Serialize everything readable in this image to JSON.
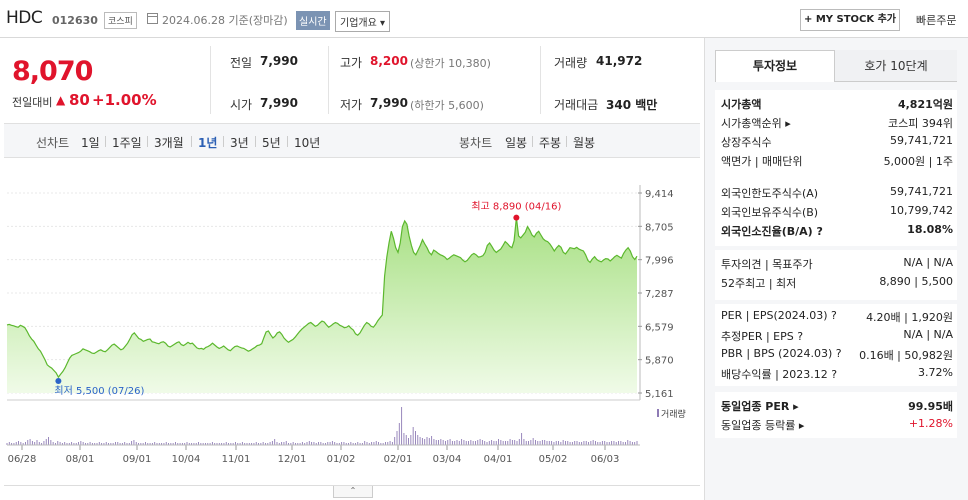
{
  "header": {
    "name": "HDC",
    "code": "012630",
    "market": "코스피",
    "date": "2024.06.28 기준(장마감)",
    "realtime": "실시간",
    "overview": "기업개요 ▾",
    "mystock": "+ MY STOCK 추가",
    "quick_order": "빠른주문"
  },
  "price": {
    "current": "8,070",
    "change_label": "전일대비",
    "change_arrow": "▲",
    "change_value": "80",
    "change_pct": "+1.00%",
    "prev_close_label": "전일",
    "prev_close": "7,990",
    "high_label": "고가",
    "high": "8,200",
    "upper_limit": "(상한가 10,380)",
    "volume_label": "거래량",
    "volume": "41,972",
    "open_label": "시가",
    "open": "7,990",
    "low_label": "저가",
    "low": "7,990",
    "lower_limit": "(하한가 5,600)",
    "amount_label": "거래대금",
    "amount": "340 백만"
  },
  "period_tabs": {
    "line_label": "선차트",
    "line": [
      "1일",
      "1주일",
      "3개월",
      "1년",
      "3년",
      "5년",
      "10년"
    ],
    "active": "1년",
    "candle_label": "봉차트",
    "candle": [
      "일봉",
      "주봉",
      "월봉"
    ]
  },
  "chart_data": {
    "type": "area",
    "title": "",
    "xlabel": "",
    "ylabel": "",
    "ylim": [
      5161,
      9414
    ],
    "y_ticks": [
      "9,414",
      "8,705",
      "7,996",
      "7,287",
      "6,579",
      "5,870",
      "5,161"
    ],
    "x_ticks": [
      "06/28",
      "08/01",
      "09/01",
      "10/04",
      "11/01",
      "12/01",
      "01/02",
      "02/01",
      "03/04",
      "04/01",
      "05/02",
      "06/03"
    ],
    "high_label": "최고 8,890 (04/16)",
    "low_label": "최저 5,500 (07/26)",
    "volume_legend": "거래량",
    "line_color": "#5cb82e",
    "fill_color": "#c6ecb0",
    "series": [
      {
        "values": [
          6610,
          6620,
          6600,
          6590,
          6570,
          6560,
          6600,
          6580,
          6550,
          6470,
          6380,
          6310,
          6260,
          6180,
          6100,
          6050,
          5960,
          5870,
          5760,
          5720,
          5690,
          5640,
          5590,
          5500,
          5560,
          5620,
          5700,
          5800,
          5900,
          5960,
          5980,
          6000,
          6020,
          6050,
          6100,
          6080,
          6060,
          6040,
          6010,
          6000,
          6030,
          6060,
          6080,
          6050,
          6040,
          6080,
          6130,
          6180,
          6200,
          6160,
          6120,
          6080,
          6100,
          6160,
          6220,
          6310,
          6400,
          6440,
          6380,
          6320,
          6300,
          6260,
          6280,
          6300,
          6310,
          6250,
          6240,
          6220,
          6210,
          6240,
          6250,
          6220,
          6160,
          6140,
          6170,
          6200,
          6230,
          6250,
          6190,
          6170,
          6200,
          6240,
          6210,
          6220,
          6170,
          6120,
          6100,
          6110,
          6090,
          6130,
          6150,
          6180,
          6220,
          6180,
          6140,
          6110,
          6130,
          6160,
          6120,
          6080,
          6060,
          6110,
          6150,
          6160,
          6140,
          6120,
          6110,
          6080,
          6050,
          6070,
          6100,
          6130,
          6170,
          6180,
          6210,
          6340,
          6460,
          6480,
          6400,
          6330,
          6370,
          6440,
          6460,
          6410,
          6330,
          6280,
          6240,
          6270,
          6300,
          6350,
          6410,
          6470,
          6520,
          6560,
          6600,
          6640,
          6660,
          6620,
          6580,
          6600,
          6650,
          6690,
          6670,
          6610,
          6560,
          6590,
          6630,
          6660,
          6640,
          6600,
          6580,
          6550,
          6560,
          6590,
          6540,
          6500,
          6420,
          6390,
          6440,
          6520,
          6600,
          6660,
          6630,
          6580,
          6560,
          6620,
          6700,
          6760,
          6820,
          7650,
          8050,
          8350,
          8600,
          8450,
          8250,
          8150,
          8350,
          8700,
          8820,
          8750,
          8500,
          8300,
          8150,
          8100,
          8200,
          8300,
          8420,
          8330,
          8250,
          8150,
          8100,
          8200,
          8170,
          8130,
          8100,
          8080,
          8050,
          8000,
          8030,
          8070,
          8100,
          8080,
          8060,
          8040,
          7990,
          7950,
          7980,
          8040,
          8100,
          8130,
          8100,
          8050,
          8060,
          8080,
          8150,
          8300,
          8350,
          8280,
          8200,
          8150,
          8190,
          8220,
          8300,
          8380,
          8340,
          8280,
          8250,
          8400,
          8890,
          8500,
          8460,
          8520,
          8580,
          8700,
          8620,
          8520,
          8480,
          8560,
          8600,
          8520,
          8440,
          8400,
          8380,
          8330,
          8260,
          8180,
          8250,
          8300,
          8260,
          8150,
          8120,
          8180,
          8250,
          8240,
          8230,
          8260,
          8220,
          8200,
          8180,
          8100,
          7980,
          7940,
          8010,
          8060,
          8000,
          7970,
          7950,
          7990,
          8020,
          8010,
          7970,
          8010,
          8060,
          8090,
          8060,
          8030,
          8130,
          8200,
          8250,
          8180,
          8060,
          8000,
          8070
        ]
      }
    ],
    "volume": [
      2,
      3,
      2,
      2,
      3,
      4,
      3,
      2,
      3,
      5,
      6,
      4,
      3,
      5,
      3,
      2,
      4,
      6,
      8,
      5,
      3,
      2,
      4,
      3,
      2,
      3,
      2,
      2,
      3,
      2,
      2,
      3,
      4,
      3,
      2,
      2,
      3,
      2,
      2,
      2,
      3,
      2,
      2,
      3,
      2,
      2,
      2,
      3,
      3,
      2,
      2,
      3,
      2,
      2,
      4,
      5,
      3,
      2,
      2,
      2,
      3,
      2,
      2,
      2,
      3,
      2,
      2,
      2,
      2,
      3,
      2,
      2,
      2,
      3,
      2,
      2,
      2,
      2,
      3,
      2,
      2,
      2,
      2,
      3,
      2,
      2,
      2,
      2,
      2,
      3,
      2,
      2,
      2,
      2,
      2,
      3,
      2,
      2,
      2,
      3,
      2,
      2,
      3,
      2,
      2,
      2,
      2,
      2,
      3,
      2,
      2,
      3,
      2,
      2,
      3,
      4,
      6,
      3,
      2,
      3,
      3,
      4,
      2,
      2,
      3,
      2,
      2,
      2,
      3,
      2,
      3,
      4,
      3,
      3,
      2,
      3,
      3,
      2,
      2,
      3,
      3,
      4,
      3,
      2,
      2,
      3,
      3,
      2,
      2,
      3,
      2,
      2,
      3,
      2,
      2,
      4,
      3,
      2,
      3,
      3,
      4,
      3,
      2,
      2,
      3,
      3,
      4,
      3,
      8,
      14,
      22,
      38,
      12,
      10,
      7,
      10,
      18,
      14,
      10,
      8,
      7,
      6,
      8,
      7,
      9,
      6,
      5,
      5,
      6,
      5,
      4,
      5,
      6,
      4,
      4,
      5,
      4,
      6,
      5,
      4,
      4,
      5,
      4,
      4,
      5,
      6,
      5,
      4,
      3,
      4,
      5,
      4,
      4,
      6,
      5,
      4,
      4,
      4,
      6,
      5,
      5,
      4,
      6,
      12,
      6,
      4,
      4,
      5,
      7,
      5,
      4,
      4,
      5,
      5,
      4,
      4,
      4,
      3,
      4,
      4,
      3,
      5,
      4,
      4,
      3,
      3,
      4,
      4,
      3,
      3,
      4,
      4,
      3,
      4,
      5,
      4,
      3,
      3,
      4,
      4,
      3,
      3,
      4,
      4,
      3,
      4,
      4,
      3,
      3,
      5,
      4,
      3,
      3,
      4
    ]
  },
  "invest_tabs": {
    "invest": "투자정보",
    "order": "호가 10단계"
  },
  "invest": {
    "s1": [
      {
        "k": "시가총액",
        "v": "4,821억원",
        "bold": true
      },
      {
        "k": "시가총액순위 ▸",
        "v": "코스피 394위"
      },
      {
        "k": "상장주식수",
        "v": "59,741,721"
      },
      {
        "k": "액면가 | 매매단위",
        "v": "5,000원 | 1주"
      }
    ],
    "s2": [
      {
        "k": "외국인한도주식수(A)",
        "v": "59,741,721"
      },
      {
        "k": "외국인보유주식수(B)",
        "v": "10,799,742"
      },
      {
        "k": "외국인소진율(B/A) ?",
        "v": "18.08%",
        "bold": true
      }
    ],
    "s3": [
      {
        "k": "투자의견 | 목표주가",
        "v": "N/A | N/A"
      },
      {
        "k": "52주최고 | 최저",
        "v": "8,890 | 5,500"
      }
    ],
    "s4": [
      {
        "k": "PER | EPS(2024.03) ?",
        "v": "4.20배 | 1,920원"
      },
      {
        "k": "추정PER | EPS ?",
        "v": "N/A | N/A"
      },
      {
        "k": "PBR | BPS (2024.03) ?",
        "v": "0.16배 | 50,982원"
      },
      {
        "k": "배당수익률 | 2023.12 ?",
        "v": "3.72%"
      }
    ],
    "s5": [
      {
        "k": "동일업종 PER ▸",
        "v": "99.95배",
        "bold": true
      },
      {
        "k": "동일업종 등락률 ▸",
        "v": "+1.28%",
        "red": true
      }
    ]
  },
  "colors": {
    "up": "#e0142c",
    "active_period": "#2b5fb4"
  }
}
